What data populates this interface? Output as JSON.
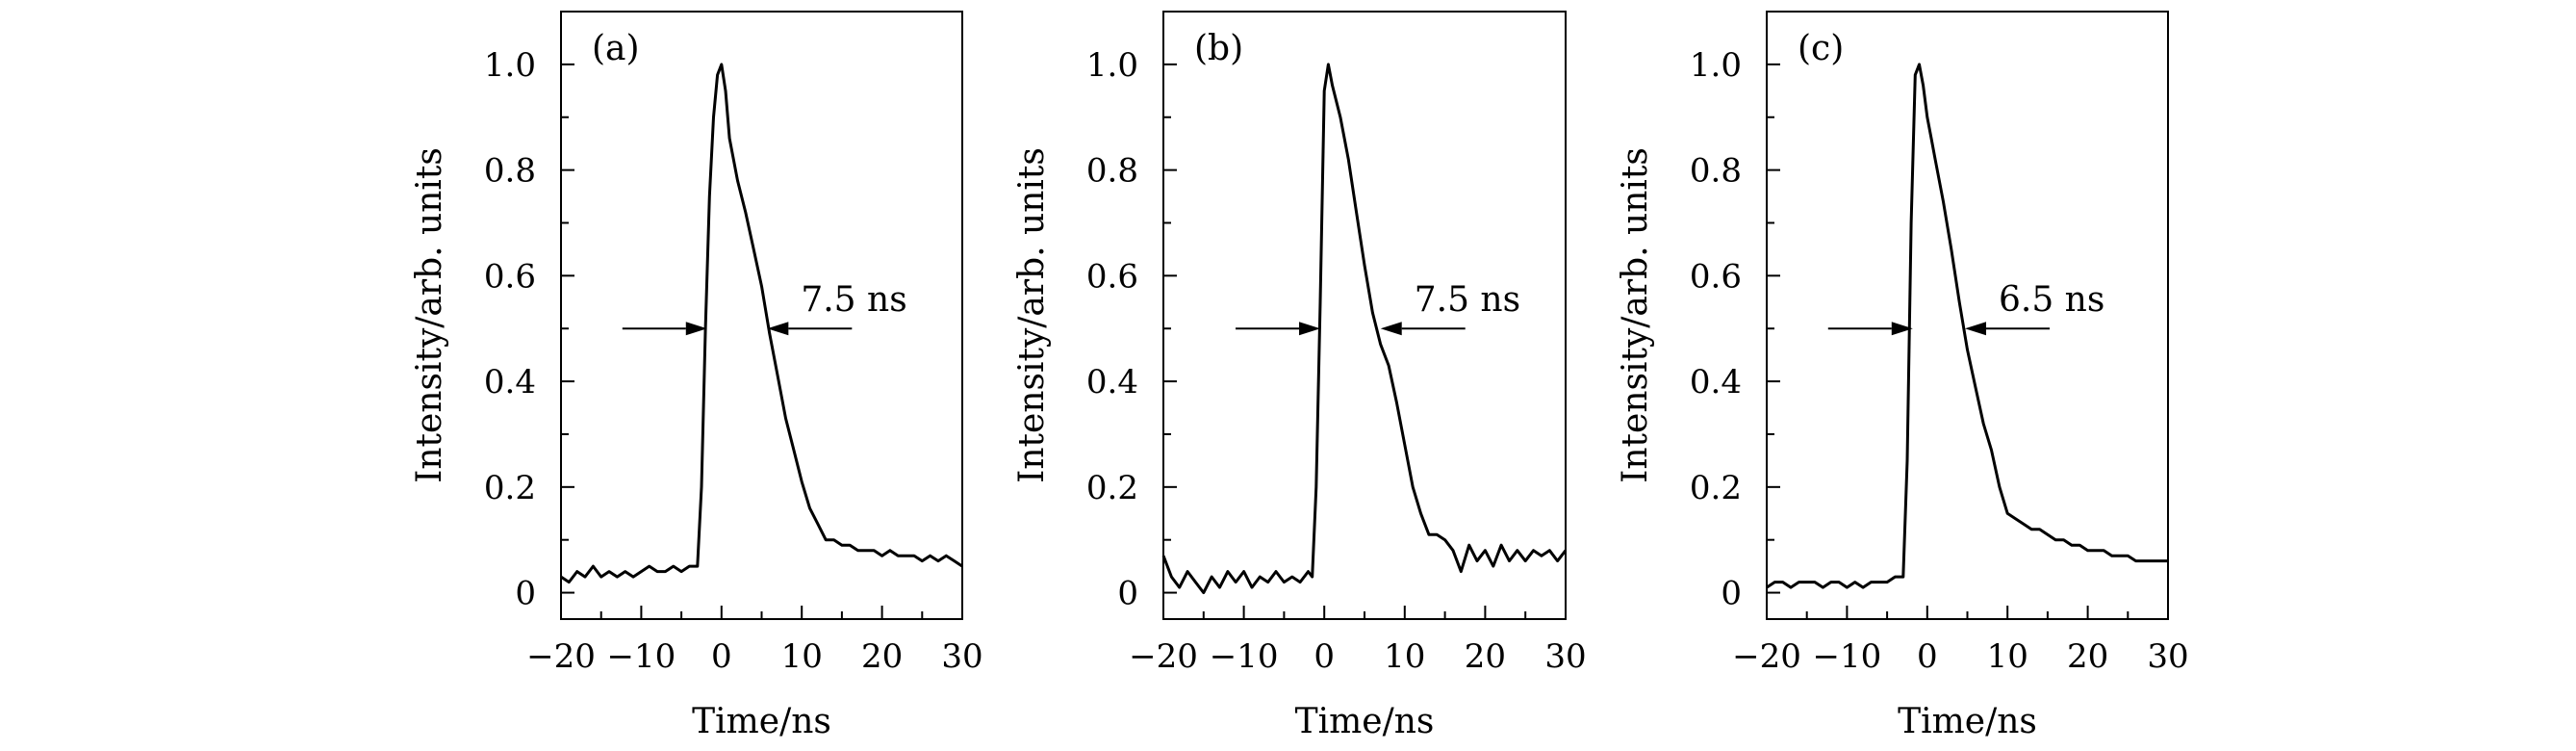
{
  "chart_data": [
    {
      "type": "line",
      "panel_label": "(a)",
      "xlabel": "Time/ns",
      "ylabel": "Intensity/arb. units",
      "xlim": [
        -20,
        30
      ],
      "ylim": [
        -0.05,
        1.1
      ],
      "xticks": [
        -20,
        -10,
        0,
        10,
        20,
        30
      ],
      "xtick_labels": [
        "−20",
        "−10",
        "0",
        "10",
        "20",
        "30"
      ],
      "yticks": [
        0,
        0.2,
        0.4,
        0.6,
        0.8,
        1.0
      ],
      "ytick_labels": [
        "0",
        "0.2",
        "0.4",
        "0.6",
        "0.8",
        "1.0"
      ],
      "annotation": {
        "label": "7.5 ns",
        "y": 0.5,
        "left_x": -1.8,
        "right_x": 5.7
      },
      "series": [
        {
          "x": [
            -20,
            -19,
            -18,
            -17,
            -16,
            -15,
            -14,
            -13,
            -12,
            -11,
            -10,
            -9,
            -8,
            -7,
            -6,
            -5,
            -4,
            -3,
            -2.5,
            -2,
            -1.5,
            -1,
            -0.5,
            0,
            0.5,
            1,
            2,
            3,
            4,
            5,
            6,
            7,
            8,
            9,
            10,
            11,
            12,
            13,
            14,
            15,
            16,
            17,
            18,
            19,
            20,
            21,
            22,
            23,
            24,
            25,
            26,
            27,
            28,
            29,
            30
          ],
          "y": [
            0.03,
            0.02,
            0.04,
            0.03,
            0.05,
            0.03,
            0.04,
            0.03,
            0.04,
            0.03,
            0.04,
            0.05,
            0.04,
            0.04,
            0.05,
            0.04,
            0.05,
            0.05,
            0.2,
            0.5,
            0.75,
            0.9,
            0.98,
            1.0,
            0.95,
            0.86,
            0.78,
            0.72,
            0.65,
            0.58,
            0.49,
            0.41,
            0.33,
            0.27,
            0.21,
            0.16,
            0.13,
            0.1,
            0.1,
            0.09,
            0.09,
            0.08,
            0.08,
            0.08,
            0.07,
            0.08,
            0.07,
            0.07,
            0.07,
            0.06,
            0.07,
            0.06,
            0.07,
            0.06,
            0.05
          ]
        }
      ]
    },
    {
      "type": "line",
      "panel_label": "(b)",
      "xlabel": "Time/ns",
      "ylabel": "Intensity/arb. units",
      "xlim": [
        -20,
        30
      ],
      "ylim": [
        -0.05,
        1.1
      ],
      "xticks": [
        -20,
        -10,
        0,
        10,
        20,
        30
      ],
      "xtick_labels": [
        "−20",
        "−10",
        "0",
        "10",
        "20",
        "30"
      ],
      "yticks": [
        0,
        0.2,
        0.4,
        0.6,
        0.8,
        1.0
      ],
      "ytick_labels": [
        "0",
        "0.2",
        "0.4",
        "0.6",
        "0.8",
        "1.0"
      ],
      "annotation": {
        "label": "7.5 ns",
        "y": 0.5,
        "left_x": -0.5,
        "right_x": 7.0
      },
      "series": [
        {
          "x": [
            -20,
            -19,
            -18,
            -17,
            -16,
            -15,
            -14,
            -13,
            -12,
            -11,
            -10,
            -9,
            -8,
            -7,
            -6,
            -5,
            -4,
            -3,
            -2,
            -1.5,
            -1,
            -0.5,
            0,
            0.5,
            1,
            2,
            3,
            4,
            5,
            6,
            7,
            8,
            9,
            10,
            11,
            12,
            13,
            14,
            15,
            16,
            17,
            18,
            19,
            20,
            21,
            22,
            23,
            24,
            25,
            26,
            27,
            28,
            29,
            30
          ],
          "y": [
            0.07,
            0.03,
            0.01,
            0.04,
            0.02,
            0.0,
            0.03,
            0.01,
            0.04,
            0.02,
            0.04,
            0.01,
            0.03,
            0.02,
            0.04,
            0.02,
            0.03,
            0.02,
            0.04,
            0.03,
            0.2,
            0.55,
            0.95,
            1.0,
            0.96,
            0.9,
            0.82,
            0.72,
            0.62,
            0.53,
            0.47,
            0.43,
            0.36,
            0.28,
            0.2,
            0.15,
            0.11,
            0.11,
            0.1,
            0.08,
            0.04,
            0.09,
            0.06,
            0.08,
            0.05,
            0.09,
            0.06,
            0.08,
            0.06,
            0.08,
            0.07,
            0.08,
            0.06,
            0.08
          ]
        }
      ]
    },
    {
      "type": "line",
      "panel_label": "(c)",
      "xlabel": "Time/ns",
      "ylabel": "Intensity/arb. units",
      "xlim": [
        -20,
        30
      ],
      "ylim": [
        -0.05,
        1.1
      ],
      "xticks": [
        -20,
        -10,
        0,
        10,
        20,
        30
      ],
      "xtick_labels": [
        "−20",
        "−10",
        "0",
        "10",
        "20",
        "30"
      ],
      "yticks": [
        0,
        0.2,
        0.4,
        0.6,
        0.8,
        1.0
      ],
      "ytick_labels": [
        "0",
        "0.2",
        "0.4",
        "0.6",
        "0.8",
        "1.0"
      ],
      "annotation": {
        "label": "6.5 ns",
        "y": 0.5,
        "left_x": -1.8,
        "right_x": 4.7
      },
      "series": [
        {
          "x": [
            -20,
            -19,
            -18,
            -17,
            -16,
            -15,
            -14,
            -13,
            -12,
            -11,
            -10,
            -9,
            -8,
            -7,
            -6,
            -5,
            -4,
            -3,
            -2.5,
            -2,
            -1.5,
            -1,
            -0.5,
            0,
            0.5,
            1,
            2,
            3,
            4,
            5,
            6,
            7,
            8,
            9,
            10,
            11,
            12,
            13,
            14,
            15,
            16,
            17,
            18,
            19,
            20,
            21,
            22,
            23,
            24,
            25,
            26,
            27,
            28,
            29,
            30
          ],
          "y": [
            0.01,
            0.02,
            0.02,
            0.01,
            0.02,
            0.02,
            0.02,
            0.01,
            0.02,
            0.02,
            0.01,
            0.02,
            0.01,
            0.02,
            0.02,
            0.02,
            0.03,
            0.03,
            0.25,
            0.7,
            0.98,
            1.0,
            0.96,
            0.9,
            0.86,
            0.82,
            0.74,
            0.65,
            0.55,
            0.46,
            0.39,
            0.32,
            0.27,
            0.2,
            0.15,
            0.14,
            0.13,
            0.12,
            0.12,
            0.11,
            0.1,
            0.1,
            0.09,
            0.09,
            0.08,
            0.08,
            0.08,
            0.07,
            0.07,
            0.07,
            0.06,
            0.06,
            0.06,
            0.06,
            0.06
          ]
        }
      ]
    }
  ]
}
